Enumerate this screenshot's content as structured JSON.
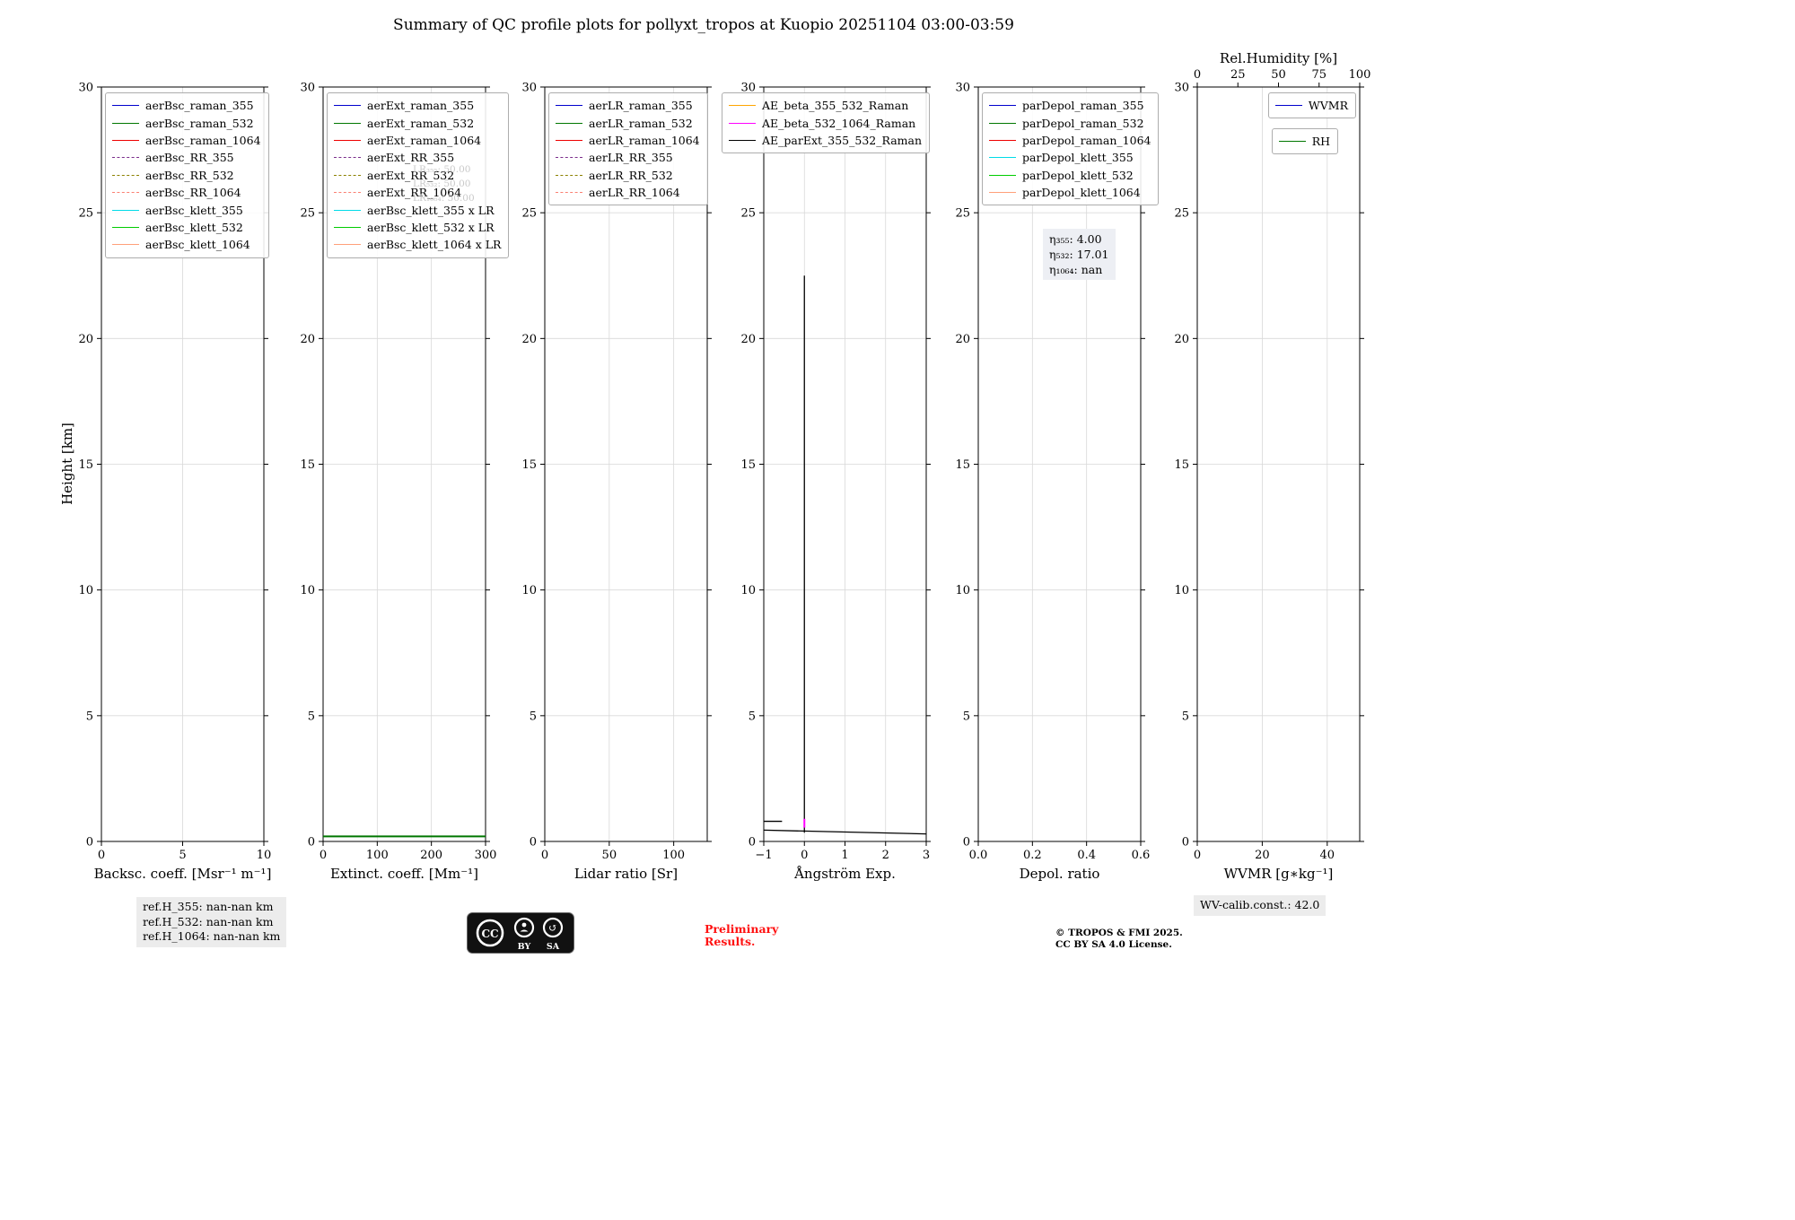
{
  "title": "Summary of QC profile plots for pollyxt_tropos at Kuopio 20251104 03:00-03:59",
  "chart_data": {
    "type": "line",
    "ylabel": "Height [km]",
    "ylim": [
      0,
      30
    ],
    "yticks": [
      0,
      5,
      10,
      15,
      20,
      25,
      30
    ],
    "grid": true,
    "panels": [
      {
        "xlabel": "Backsc. coeff. [Msr⁻¹ m⁻¹]",
        "xlim": [
          0,
          10
        ],
        "xticks": [
          0,
          5,
          10
        ],
        "xtick_labels": [
          "0",
          "5",
          "10"
        ],
        "legend_loc": "upper-left",
        "legend": [
          {
            "label": "aerBsc_raman_355",
            "color": "#0000cd",
            "dash": "solid"
          },
          {
            "label": "aerBsc_raman_532",
            "color": "#007700",
            "dash": "solid"
          },
          {
            "label": "aerBsc_raman_1064",
            "color": "#ee0000",
            "dash": "solid"
          },
          {
            "label": "aerBsc_RR_355",
            "color": "#7b2d8b",
            "dash": "dashed"
          },
          {
            "label": "aerBsc_RR_532",
            "color": "#8b8000",
            "dash": "dashed"
          },
          {
            "label": "aerBsc_RR_1064",
            "color": "#fa8072",
            "dash": "dashed"
          },
          {
            "label": "aerBsc_klett_355",
            "color": "#00dbe8",
            "dash": "solid"
          },
          {
            "label": "aerBsc_klett_532",
            "color": "#00cc00",
            "dash": "solid"
          },
          {
            "label": "aerBsc_klett_1064",
            "color": "#ffa07a",
            "dash": "solid"
          }
        ],
        "series": []
      },
      {
        "xlabel": "Extinct. coeff. [Mm⁻¹]",
        "xlim": [
          0,
          300
        ],
        "xticks": [
          0,
          100,
          200,
          300
        ],
        "xtick_labels": [
          "0",
          "100",
          "200",
          "300"
        ],
        "legend_loc": "upper-left",
        "legend": [
          {
            "label": "aerExt_raman_355",
            "color": "#0000cd",
            "dash": "solid"
          },
          {
            "label": "aerExt_raman_532",
            "color": "#007700",
            "dash": "solid"
          },
          {
            "label": "aerExt_raman_1064",
            "color": "#ee0000",
            "dash": "solid"
          },
          {
            "label": "aerExt_RR_355",
            "color": "#7b2d8b",
            "dash": "dashed"
          },
          {
            "label": "aerExt_RR_532",
            "color": "#8b8000",
            "dash": "dashed"
          },
          {
            "label": "aerExt_RR_1064",
            "color": "#fa8072",
            "dash": "dashed"
          },
          {
            "label": "aerBsc_klett_355 x LR",
            "color": "#00dbe8",
            "dash": "solid"
          },
          {
            "label": "aerBsc_klett_532 x LR",
            "color": "#00cc00",
            "dash": "solid"
          },
          {
            "label": "aerBsc_klett_1064 x LR",
            "color": "#ffa07a",
            "dash": "solid"
          }
        ],
        "watermark": {
          "lines": [
            "LR₃₅₅: 50.00",
            "LR₅₃₂: 50.00",
            "LR₁₀₆₄: 50.00"
          ]
        },
        "series": [
          {
            "name": "aerBsc_klett_532 x LR",
            "color": "#007700",
            "width": 2,
            "points": [
              [
                0,
                0.2
              ],
              [
                300,
                0.2
              ]
            ]
          }
        ]
      },
      {
        "xlabel": "Lidar ratio [Sr]",
        "xlim": [
          0,
          126
        ],
        "xticks": [
          0,
          50,
          100
        ],
        "xtick_labels": [
          "0",
          "50",
          "100"
        ],
        "legend_loc": "upper-left",
        "legend": [
          {
            "label": "aerLR_raman_355",
            "color": "#0000cd",
            "dash": "solid"
          },
          {
            "label": "aerLR_raman_532",
            "color": "#007700",
            "dash": "solid"
          },
          {
            "label": "aerLR_raman_1064",
            "color": "#ee0000",
            "dash": "solid"
          },
          {
            "label": "aerLR_RR_355",
            "color": "#7b2d8b",
            "dash": "dashed"
          },
          {
            "label": "aerLR_RR_532",
            "color": "#8b8000",
            "dash": "dashed"
          },
          {
            "label": "aerLR_RR_1064",
            "color": "#fa8072",
            "dash": "dashed"
          }
        ],
        "series": []
      },
      {
        "xlabel": "Ångström Exp.",
        "xlim": [
          -1,
          3
        ],
        "xticks": [
          -1,
          0,
          1,
          2,
          3
        ],
        "xtick_labels": [
          "−1",
          "0",
          "1",
          "2",
          "3"
        ],
        "legend_loc": "upper-left",
        "legend_offset_x": -51,
        "legend": [
          {
            "label": "AE_beta_355_532_Raman",
            "color": "#ffa500",
            "dash": "solid"
          },
          {
            "label": "AE_beta_532_1064_Raman",
            "color": "#ff00ff",
            "dash": "solid"
          },
          {
            "label": "AE_parExt_355_532_Raman",
            "color": "#000000",
            "dash": "solid"
          }
        ],
        "series": [
          {
            "name": "AE_parExt_355_532_Raman",
            "color": "#000000",
            "width": 1.3,
            "points": [
              [
                0,
                22.5
              ],
              [
                0,
                0.35
              ]
            ]
          },
          {
            "name": "AE_parExt_355_532_Raman_segment",
            "color": "#000000",
            "width": 1.3,
            "points": [
              [
                -1,
                0.8
              ],
              [
                -0.55,
                0.8
              ]
            ]
          },
          {
            "name": "AE_parExt_355_532_Raman_bottom",
            "color": "#000000",
            "width": 1.3,
            "points": [
              [
                -1,
                0.45
              ],
              [
                3,
                0.3
              ]
            ]
          },
          {
            "name": "AE_beta_532_1064_Raman",
            "color": "#ff00ff",
            "width": 2,
            "points": [
              [
                0,
                0.9
              ],
              [
                0,
                0.55
              ]
            ]
          }
        ]
      },
      {
        "xlabel": "Depol. ratio",
        "xlim": [
          0,
          0.6
        ],
        "xticks": [
          0,
          0.2,
          0.4,
          0.6
        ],
        "xtick_labels": [
          "0.0",
          "0.2",
          "0.4",
          "0.6"
        ],
        "legend_loc": "upper-left",
        "legend": [
          {
            "label": "parDepol_raman_355",
            "color": "#0000cd",
            "dash": "solid"
          },
          {
            "label": "parDepol_raman_532",
            "color": "#007700",
            "dash": "solid"
          },
          {
            "label": "parDepol_raman_1064",
            "color": "#ee0000",
            "dash": "solid"
          },
          {
            "label": "parDepol_klett_355",
            "color": "#00dbe8",
            "dash": "solid"
          },
          {
            "label": "parDepol_klett_532",
            "color": "#00cc00",
            "dash": "solid"
          },
          {
            "label": "parDepol_klett_1064",
            "color": "#ffa07a",
            "dash": "solid"
          }
        ],
        "annotation": {
          "lines": [
            "η₃₅₅: 4.00",
            "η₅₃₂: 17.01",
            "η₁₀₆₄: nan"
          ]
        },
        "series": []
      },
      {
        "xlabel": "WVMR [g∗kg⁻¹]",
        "xlim": [
          0,
          50
        ],
        "xticks": [
          0,
          20,
          40
        ],
        "xtick_labels": [
          "0",
          "20",
          "40"
        ],
        "top_axis": {
          "label": "Rel.Humidity [%]",
          "xlim": [
            0,
            100
          ],
          "ticks": [
            0,
            25,
            50,
            75,
            100
          ],
          "tick_labels": [
            "0",
            "25",
            "50",
            "75",
            "100"
          ]
        },
        "legend_loc": "upper-right",
        "legend_boxes": [
          [
            {
              "label": "WVMR",
              "color": "#0000cd",
              "dash": "solid"
            }
          ],
          [
            {
              "label": "RH",
              "color": "#007700",
              "dash": "solid"
            }
          ]
        ],
        "series": []
      }
    ]
  },
  "footer": {
    "ref_lines": [
      "ref.H_355: nan-nan km",
      "ref.H_532: nan-nan km",
      "ref.H_1064: nan-nan km"
    ],
    "preliminary_lines": [
      "Preliminary",
      "Results."
    ],
    "copyright_lines": [
      "© TROPOS & FMI 2025.",
      "CC BY SA 4.0 License."
    ],
    "wv_calib": "WV-calib.const.: 42.0",
    "cc_badge": {
      "cc": "CC",
      "by": "BY",
      "sa": "SA"
    }
  }
}
